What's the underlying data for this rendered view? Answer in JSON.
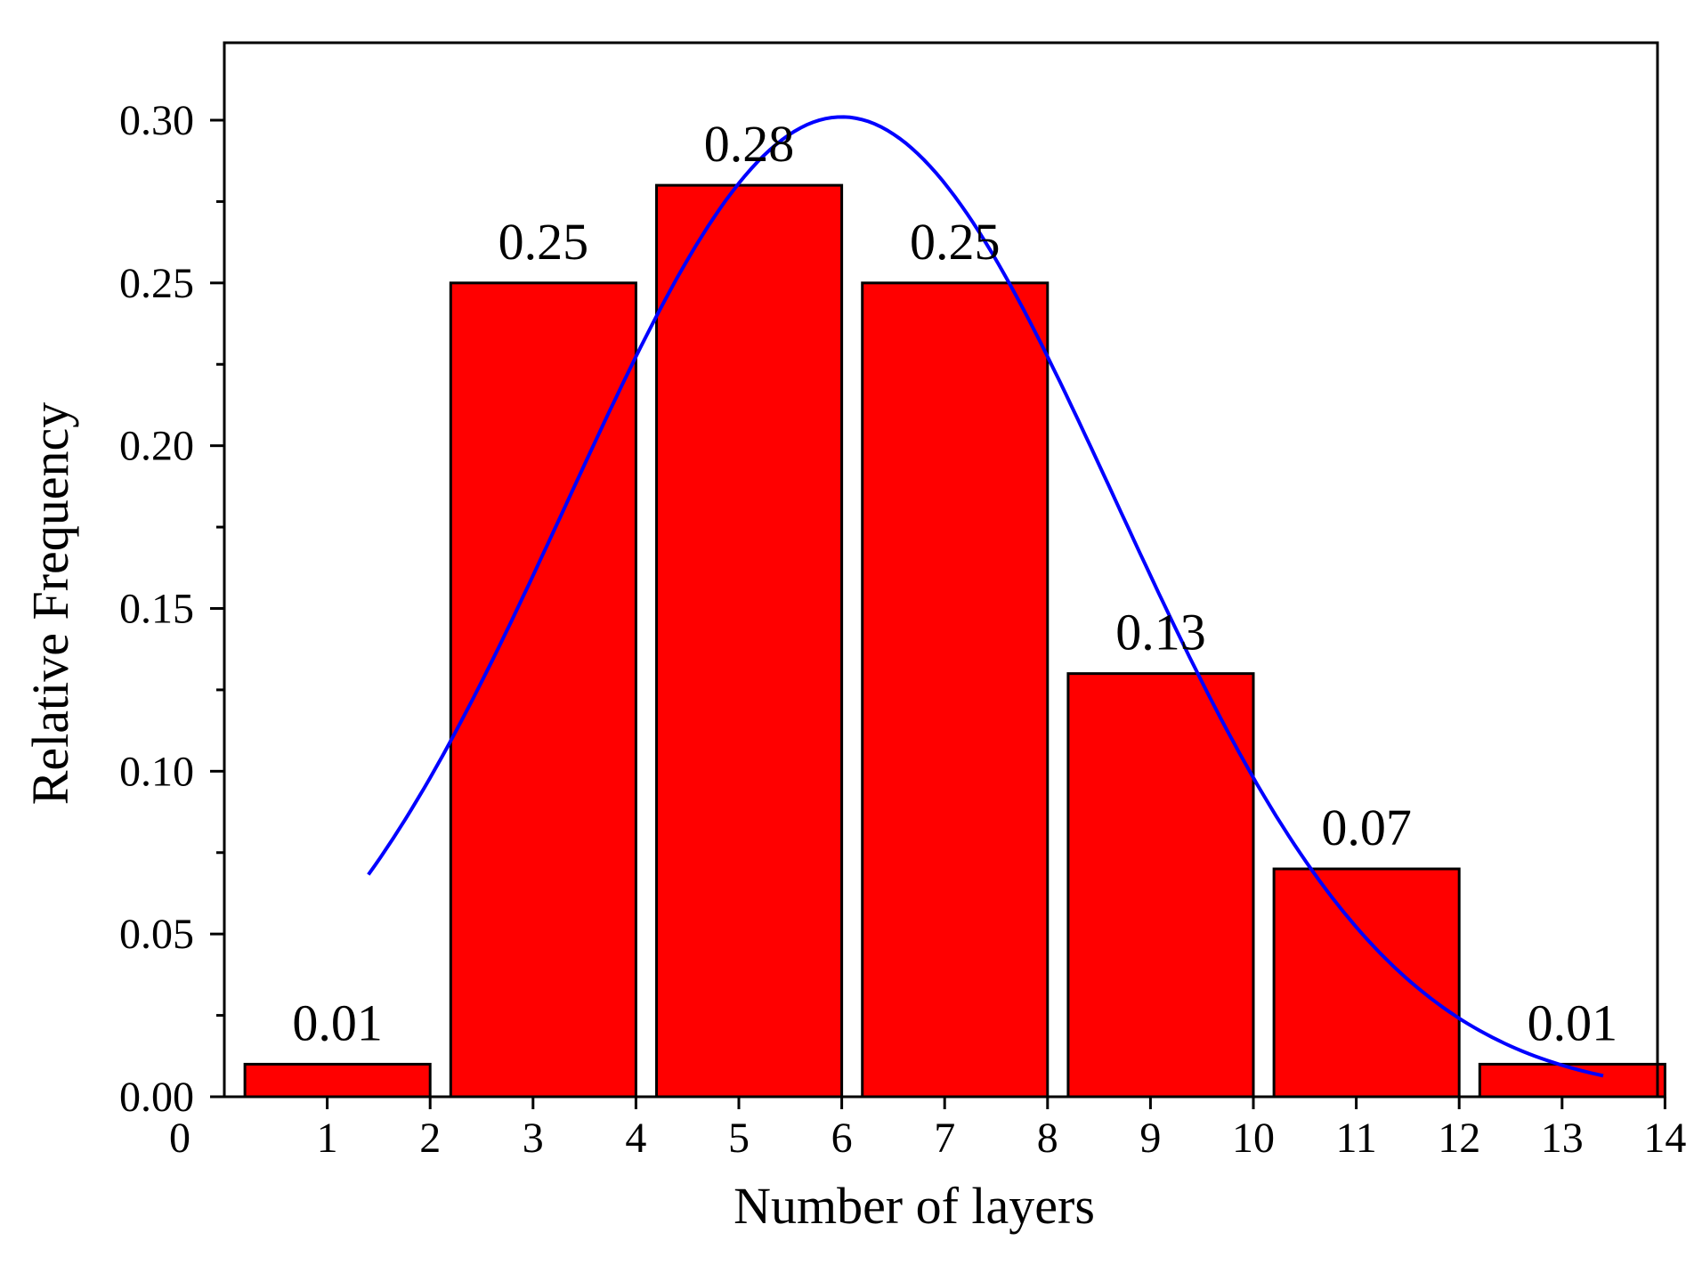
{
  "chart_data": {
    "type": "bar",
    "title": "",
    "xlabel": "Number of layers",
    "ylabel": "Relative Frequency",
    "bins": [
      {
        "start": 1,
        "end": 2,
        "value": 0.01,
        "label": "0.01"
      },
      {
        "start": 3,
        "end": 4,
        "value": 0.25,
        "label": "0.25"
      },
      {
        "start": 5,
        "end": 6,
        "value": 0.28,
        "label": "0.28"
      },
      {
        "start": 7,
        "end": 8,
        "value": 0.25,
        "label": "0.25"
      },
      {
        "start": 9,
        "end": 10,
        "value": 0.13,
        "label": "0.13"
      },
      {
        "start": 11,
        "end": 12,
        "value": 0.07,
        "label": "0.07"
      },
      {
        "start": 13,
        "end": 14,
        "value": 0.01,
        "label": "0.01"
      }
    ],
    "fit_curve": {
      "type": "gaussian",
      "peak": 0.301,
      "center": 6.0,
      "sigma": 2.67,
      "x_range": [
        1.4,
        13.4
      ]
    },
    "xlim": [
      0,
      14.1
    ],
    "ylim": [
      0,
      0.325
    ],
    "x_ticks": [
      "0",
      "1",
      "2",
      "3",
      "4",
      "5",
      "6",
      "7",
      "8",
      "9",
      "10",
      "11",
      "12",
      "13",
      "14"
    ],
    "y_ticks": [
      "0.00",
      "0.05",
      "0.10",
      "0.15",
      "0.20",
      "0.25",
      "0.30"
    ],
    "bar_color": "#ff0000",
    "curve_color": "#0000ff",
    "grid": false
  }
}
